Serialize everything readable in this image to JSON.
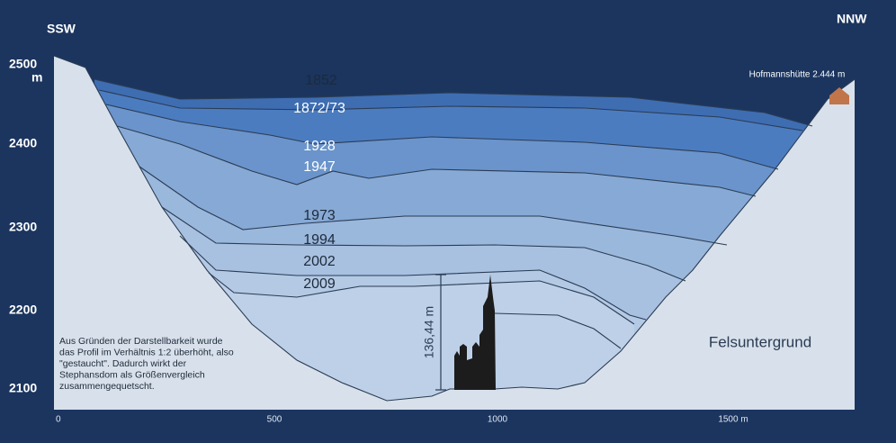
{
  "directions": {
    "left": "SSW",
    "right": "NNW"
  },
  "y_axis": {
    "labels": [
      "2500",
      "2400",
      "2300",
      "2200",
      "2100"
    ],
    "unit": "m"
  },
  "x_axis": {
    "labels": [
      "0",
      "500",
      "1000",
      "1500 m"
    ]
  },
  "year_labels": [
    "1852",
    "1872/73",
    "1928",
    "1947",
    "1973",
    "1994",
    "2002",
    "2009"
  ],
  "hut_label": "Hofmannshütte 2.444 m",
  "bedrock_label": "Felsuntergrund",
  "height_label": "136,44 m",
  "note": [
    "Aus Gründen der Darstellbarkeit wurde",
    "das Profil im Verhältnis 1:2 überhöht, also",
    "\"gestaucht\". Dadurch wirkt der",
    "Stephansdom als Größenvergleich",
    "zusammengequetscht."
  ]
}
